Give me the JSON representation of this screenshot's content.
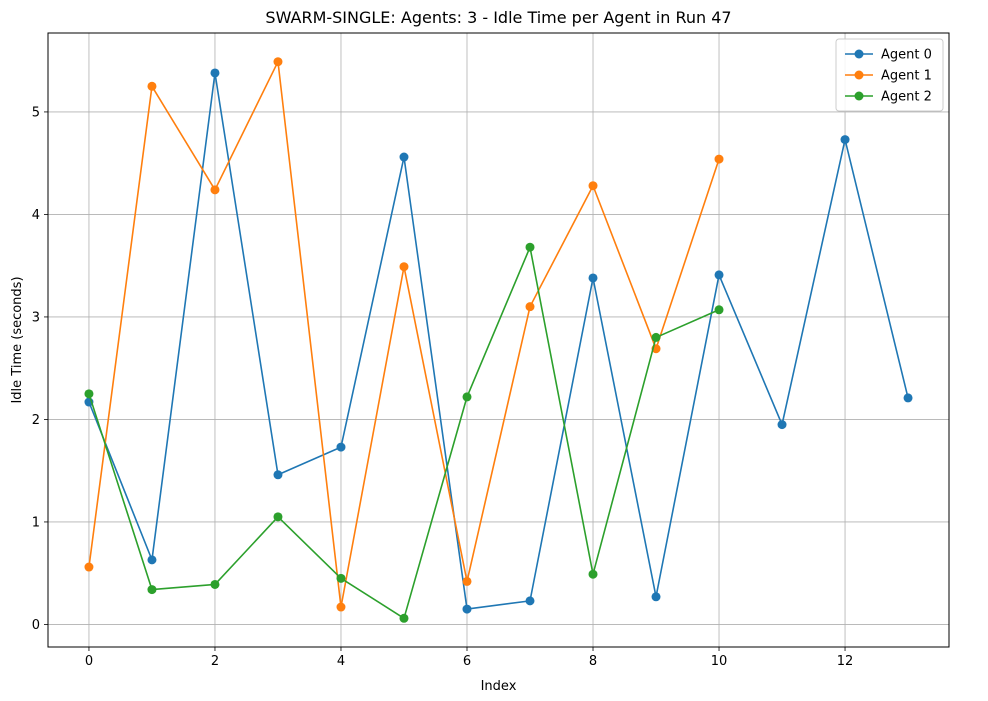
{
  "chart_data": {
    "type": "line",
    "title": "SWARM-SINGLE: Agents: 3 - Idle Time per Agent in Run 47",
    "xlabel": "Index",
    "ylabel": "Idle Time (seconds)",
    "xlim": [
      -0.65,
      13.65
    ],
    "ylim": [
      -0.22,
      5.77
    ],
    "xticks": [
      0,
      2,
      4,
      6,
      8,
      10,
      12
    ],
    "yticks": [
      0,
      1,
      2,
      3,
      4,
      5
    ],
    "grid": true,
    "legend_position": "top-right",
    "series": [
      {
        "name": "Agent 0",
        "color": "#1f77b4",
        "x": [
          0,
          1,
          2,
          3,
          4,
          5,
          6,
          7,
          8,
          9,
          10,
          11,
          12,
          13
        ],
        "values": [
          2.17,
          0.63,
          5.38,
          1.46,
          1.73,
          4.56,
          0.15,
          0.23,
          3.38,
          0.27,
          3.41,
          1.95,
          4.73,
          2.21
        ]
      },
      {
        "name": "Agent 1",
        "color": "#ff7f0e",
        "x": [
          0,
          1,
          2,
          3,
          4,
          5,
          6,
          7,
          8,
          9,
          10
        ],
        "values": [
          0.56,
          5.25,
          4.24,
          5.49,
          0.17,
          3.49,
          0.42,
          3.1,
          4.28,
          2.69,
          4.54
        ]
      },
      {
        "name": "Agent 2",
        "color": "#2ca02c",
        "x": [
          0,
          1,
          2,
          3,
          4,
          5,
          6,
          7,
          8,
          9,
          10
        ],
        "values": [
          2.25,
          0.34,
          0.39,
          1.05,
          0.45,
          0.06,
          2.22,
          3.68,
          0.49,
          2.8,
          3.07
        ]
      }
    ]
  }
}
